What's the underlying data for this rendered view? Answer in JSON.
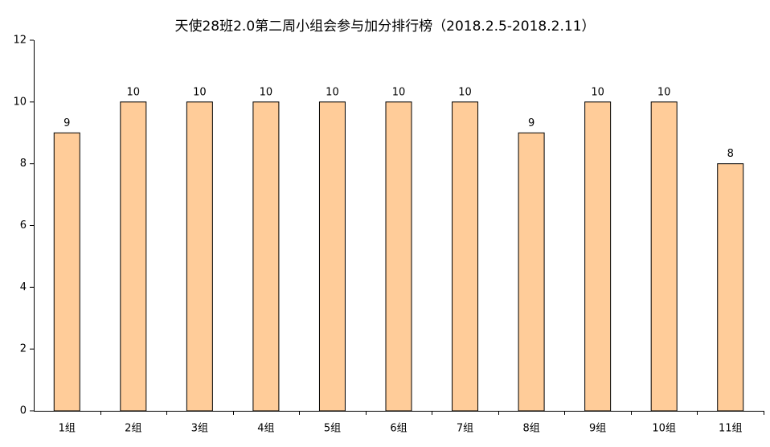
{
  "chart_data": {
    "type": "bar",
    "title": "天使28班2.0第二周小组会参与加分排行榜（2018.2.5-2018.2.11）",
    "categories": [
      "1组",
      "2组",
      "3组",
      "4组",
      "5组",
      "6组",
      "7组",
      "8组",
      "9组",
      "10组",
      "11组"
    ],
    "values": [
      9,
      10,
      10,
      10,
      10,
      10,
      10,
      9,
      10,
      10,
      8
    ],
    "color": "#ffcc99",
    "ylim": [
      0,
      12
    ],
    "yticks": [
      0,
      2,
      4,
      6,
      8,
      10,
      12
    ],
    "grid": false
  }
}
